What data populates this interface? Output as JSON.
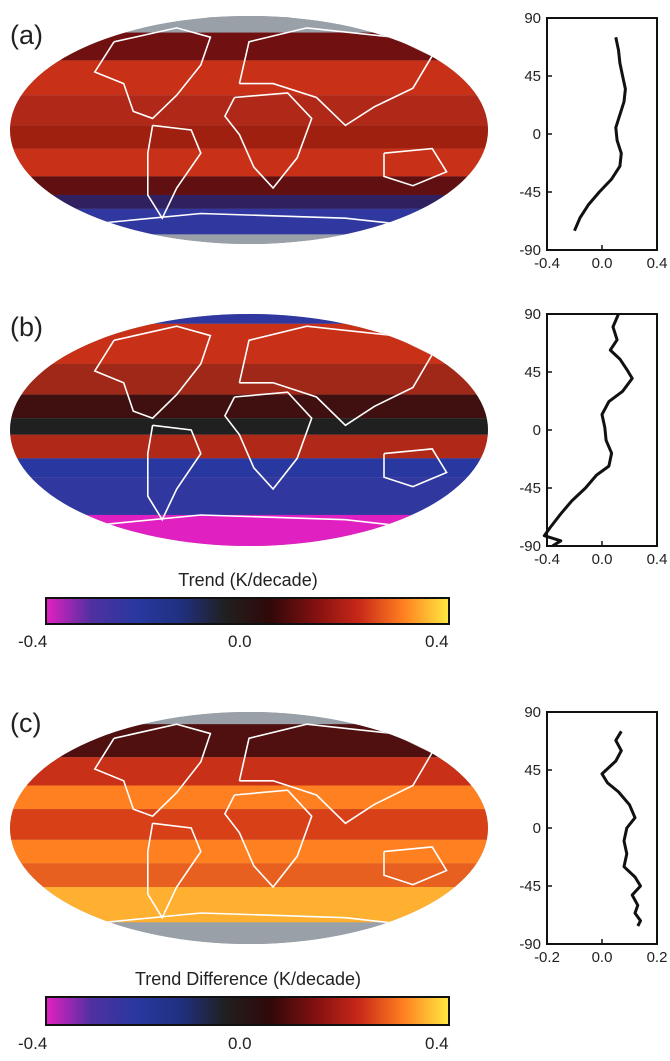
{
  "panels": [
    {
      "label": "(a)"
    },
    {
      "label": "(b)"
    },
    {
      "label": "(c)"
    }
  ],
  "colorbars": [
    {
      "title": "Trend (K/decade)",
      "ticks": [
        "-0.4",
        "0.0",
        "0.4"
      ],
      "range": [
        -0.4,
        0.4
      ]
    },
    {
      "title": "Trend Difference (K/decade)",
      "ticks": [
        "-0.4",
        "0.0",
        "0.4"
      ],
      "range": [
        -0.4,
        0.4
      ]
    }
  ],
  "colors": {
    "colormap": [
      "#e020c0",
      "#5030a0",
      "#2838a0",
      "#203080",
      "#202020",
      "#300808",
      "#801010",
      "#c82818",
      "#ff8020",
      "#ffe840"
    ],
    "land_outline": "#ffffff",
    "missing": "#9aa0a8"
  },
  "chart_data": [
    {
      "type": "line",
      "panel": "(a)",
      "orientation": "vertical-profile",
      "xlim": [
        -0.4,
        0.4
      ],
      "ylim": [
        -90,
        90
      ],
      "xticks": [
        "-0.4",
        "0.0",
        "0.4"
      ],
      "yticks": [
        "90",
        "45",
        "0",
        "-45",
        "-90"
      ],
      "points": [
        [
          0.1,
          75
        ],
        [
          0.12,
          65
        ],
        [
          0.13,
          55
        ],
        [
          0.15,
          45
        ],
        [
          0.17,
          35
        ],
        [
          0.16,
          25
        ],
        [
          0.13,
          15
        ],
        [
          0.1,
          5
        ],
        [
          0.11,
          -5
        ],
        [
          0.14,
          -15
        ],
        [
          0.13,
          -25
        ],
        [
          0.07,
          -35
        ],
        [
          -0.02,
          -45
        ],
        [
          -0.1,
          -55
        ],
        [
          -0.16,
          -65
        ],
        [
          -0.2,
          -75
        ]
      ]
    },
    {
      "type": "line",
      "panel": "(b)",
      "orientation": "vertical-profile",
      "xlim": [
        -0.4,
        0.4
      ],
      "ylim": [
        -90,
        90
      ],
      "xticks": [
        "-0.4",
        "0.0",
        "0.4"
      ],
      "yticks": [
        "90",
        "45",
        "0",
        "-45",
        "-90"
      ],
      "points": [
        [
          0.12,
          90
        ],
        [
          0.08,
          80
        ],
        [
          0.11,
          70
        ],
        [
          0.06,
          62
        ],
        [
          0.13,
          55
        ],
        [
          0.18,
          47
        ],
        [
          0.22,
          40
        ],
        [
          0.15,
          30
        ],
        [
          0.05,
          22
        ],
        [
          0.0,
          12
        ],
        [
          0.02,
          2
        ],
        [
          0.03,
          -8
        ],
        [
          0.07,
          -18
        ],
        [
          0.05,
          -28
        ],
        [
          -0.04,
          -35
        ],
        [
          -0.12,
          -45
        ],
        [
          -0.22,
          -55
        ],
        [
          -0.3,
          -65
        ],
        [
          -0.38,
          -76
        ],
        [
          -0.42,
          -82
        ],
        [
          -0.3,
          -86
        ],
        [
          -0.36,
          -90
        ]
      ]
    },
    {
      "type": "line",
      "panel": "(c)",
      "orientation": "vertical-profile",
      "xlim": [
        -0.2,
        0.2
      ],
      "ylim": [
        -90,
        90
      ],
      "xticks": [
        "-0.2",
        "0.0",
        "0.2"
      ],
      "yticks": [
        "90",
        "45",
        "0",
        "-45",
        "-90"
      ],
      "points": [
        [
          0.07,
          75
        ],
        [
          0.05,
          68
        ],
        [
          0.07,
          60
        ],
        [
          0.05,
          52
        ],
        [
          0.0,
          42
        ],
        [
          0.02,
          35
        ],
        [
          0.06,
          28
        ],
        [
          0.1,
          18
        ],
        [
          0.12,
          8
        ],
        [
          0.09,
          0
        ],
        [
          0.08,
          -10
        ],
        [
          0.09,
          -20
        ],
        [
          0.08,
          -30
        ],
        [
          0.12,
          -38
        ],
        [
          0.14,
          -45
        ],
        [
          0.11,
          -52
        ],
        [
          0.13,
          -60
        ],
        [
          0.12,
          -66
        ],
        [
          0.14,
          -72
        ],
        [
          0.13,
          -76
        ]
      ]
    }
  ]
}
